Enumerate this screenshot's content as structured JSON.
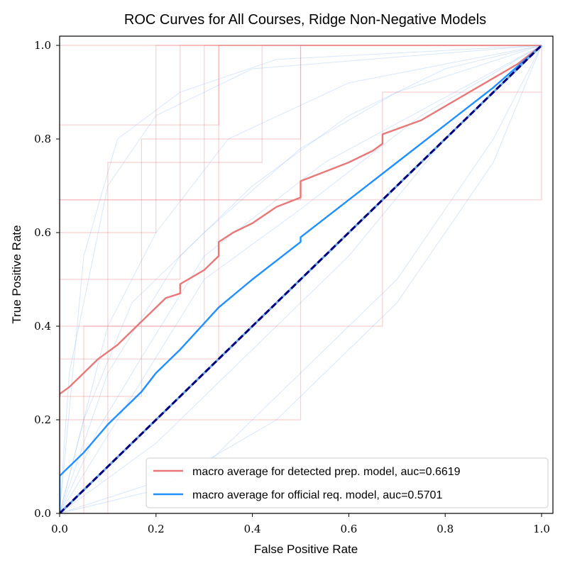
{
  "chart_data": {
    "type": "line",
    "title": "ROC Curves for All Courses, Ridge Non-Negative Models",
    "xlabel": "False Positive Rate",
    "ylabel": "True Positive Rate",
    "xlim": [
      0,
      1
    ],
    "ylim": [
      0,
      1
    ],
    "xticks": [
      "0.0",
      "0.2",
      "0.4",
      "0.6",
      "0.8",
      "1.0"
    ],
    "yticks": [
      "0.0",
      "0.2",
      "0.4",
      "0.6",
      "0.8",
      "1.0"
    ],
    "grid": false,
    "legend_position": "lower-right",
    "series": [
      {
        "name": "macro average for detected prep. model, auc=0.6619",
        "color": "#e87878",
        "x": [
          0.0,
          0.0,
          0.02,
          0.05,
          0.08,
          0.1,
          0.12,
          0.15,
          0.17,
          0.2,
          0.22,
          0.25,
          0.25,
          0.3,
          0.33,
          0.33,
          0.36,
          0.4,
          0.45,
          0.5,
          0.5,
          0.55,
          0.6,
          0.65,
          0.67,
          0.67,
          0.75,
          0.8,
          0.85,
          0.9,
          0.95,
          1.0
        ],
        "y": [
          0.25,
          0.255,
          0.27,
          0.3,
          0.33,
          0.345,
          0.36,
          0.39,
          0.41,
          0.44,
          0.46,
          0.47,
          0.49,
          0.52,
          0.55,
          0.58,
          0.6,
          0.62,
          0.655,
          0.675,
          0.71,
          0.73,
          0.75,
          0.775,
          0.79,
          0.81,
          0.84,
          0.87,
          0.9,
          0.93,
          0.96,
          1.0
        ]
      },
      {
        "name": "macro average for official req. model, auc=0.5701",
        "color": "#1e90ff",
        "x": [
          0.0,
          0.0,
          0.05,
          0.1,
          0.17,
          0.2,
          0.25,
          0.33,
          0.4,
          0.5,
          0.5,
          0.6,
          0.7,
          0.8,
          0.9,
          1.0
        ],
        "y": [
          0.0,
          0.08,
          0.13,
          0.19,
          0.26,
          0.3,
          0.35,
          0.44,
          0.5,
          0.58,
          0.59,
          0.67,
          0.75,
          0.83,
          0.91,
          1.0
        ]
      }
    ],
    "chance_line": {
      "x": [
        0,
        1
      ],
      "y": [
        0,
        1
      ],
      "color": "#000080"
    },
    "background_curves": {
      "detected_color": "#e87878",
      "official_color": "#a9c9f5",
      "detected": [
        {
          "x": [
            0,
            0,
            0.25,
            0.25,
            1
          ],
          "y": [
            0,
            0.5,
            0.5,
            1,
            1
          ]
        },
        {
          "x": [
            0,
            0,
            0.5,
            0.5,
            1
          ],
          "y": [
            0,
            0.67,
            0.67,
            1,
            1
          ]
        },
        {
          "x": [
            0,
            0,
            0.33,
            0.33,
            1
          ],
          "y": [
            0,
            0.33,
            0.33,
            1,
            1
          ]
        },
        {
          "x": [
            0,
            0,
            0.17,
            0.17,
            0.5,
            0.5,
            1
          ],
          "y": [
            0,
            0.25,
            0.25,
            0.8,
            0.8,
            1,
            1
          ]
        },
        {
          "x": [
            0,
            0,
            0.2,
            0.2,
            1
          ],
          "y": [
            0,
            0.6,
            0.6,
            1,
            1
          ]
        },
        {
          "x": [
            0,
            0,
            0.67,
            0.67,
            1
          ],
          "y": [
            0,
            0.4,
            0.4,
            0.9,
            0.9
          ]
        },
        {
          "x": [
            0,
            0,
            1,
            1
          ],
          "y": [
            0,
            1,
            1,
            1
          ]
        },
        {
          "x": [
            0,
            0,
            0.5,
            0.5,
            1
          ],
          "y": [
            0,
            0.2,
            0.2,
            0.5,
            1
          ]
        },
        {
          "x": [
            0,
            0.1,
            0.1,
            0.42,
            0.42,
            1
          ],
          "y": [
            0,
            0,
            0.75,
            0.75,
            1,
            1
          ]
        },
        {
          "x": [
            0,
            0,
            0.33,
            0.33,
            1,
            1
          ],
          "y": [
            0,
            0.83,
            0.83,
            1,
            1,
            1
          ]
        },
        {
          "x": [
            0,
            0,
            1,
            1
          ],
          "y": [
            0,
            0.67,
            0.67,
            1
          ]
        },
        {
          "x": [
            0,
            0.05,
            0.05,
            0.3,
            0.3,
            1
          ],
          "y": [
            0,
            0,
            0.4,
            0.4,
            1,
            1
          ]
        }
      ],
      "official": [
        {
          "x": [
            0,
            0.1,
            0.25,
            0.4,
            0.6,
            0.8,
            1
          ],
          "y": [
            0,
            0.3,
            0.55,
            0.7,
            0.85,
            0.95,
            1
          ]
        },
        {
          "x": [
            0,
            0.05,
            0.15,
            0.3,
            0.5,
            0.7,
            1
          ],
          "y": [
            0,
            0.2,
            0.45,
            0.6,
            0.78,
            0.9,
            1
          ]
        },
        {
          "x": [
            0,
            0.2,
            0.4,
            0.6,
            0.8,
            1
          ],
          "y": [
            0,
            0.15,
            0.35,
            0.55,
            0.8,
            1
          ]
        },
        {
          "x": [
            0,
            0.1,
            0.2,
            0.35,
            0.6,
            1
          ],
          "y": [
            0,
            0.4,
            0.6,
            0.8,
            0.92,
            1
          ]
        },
        {
          "x": [
            0,
            0.3,
            0.5,
            0.7,
            0.9,
            1
          ],
          "y": [
            0,
            0.1,
            0.3,
            0.5,
            0.8,
            1
          ]
        },
        {
          "x": [
            0,
            0.02,
            0.1,
            0.2,
            0.4,
            1
          ],
          "y": [
            0,
            0.3,
            0.7,
            0.85,
            0.95,
            1
          ]
        },
        {
          "x": [
            0,
            0.15,
            0.3,
            0.5,
            0.75,
            1
          ],
          "y": [
            0,
            0.25,
            0.5,
            0.65,
            0.85,
            1
          ]
        },
        {
          "x": [
            0,
            0.05,
            0.12,
            0.25,
            0.45,
            1
          ],
          "y": [
            0,
            0.55,
            0.8,
            0.9,
            0.97,
            1
          ]
        },
        {
          "x": [
            0,
            0.2,
            0.45,
            0.7,
            0.9,
            1
          ],
          "y": [
            0,
            0.05,
            0.2,
            0.45,
            0.75,
            1
          ]
        },
        {
          "x": [
            0,
            0.08,
            0.18,
            0.3,
            0.55,
            1
          ],
          "y": [
            0,
            0.18,
            0.35,
            0.55,
            0.75,
            1
          ]
        }
      ]
    }
  }
}
